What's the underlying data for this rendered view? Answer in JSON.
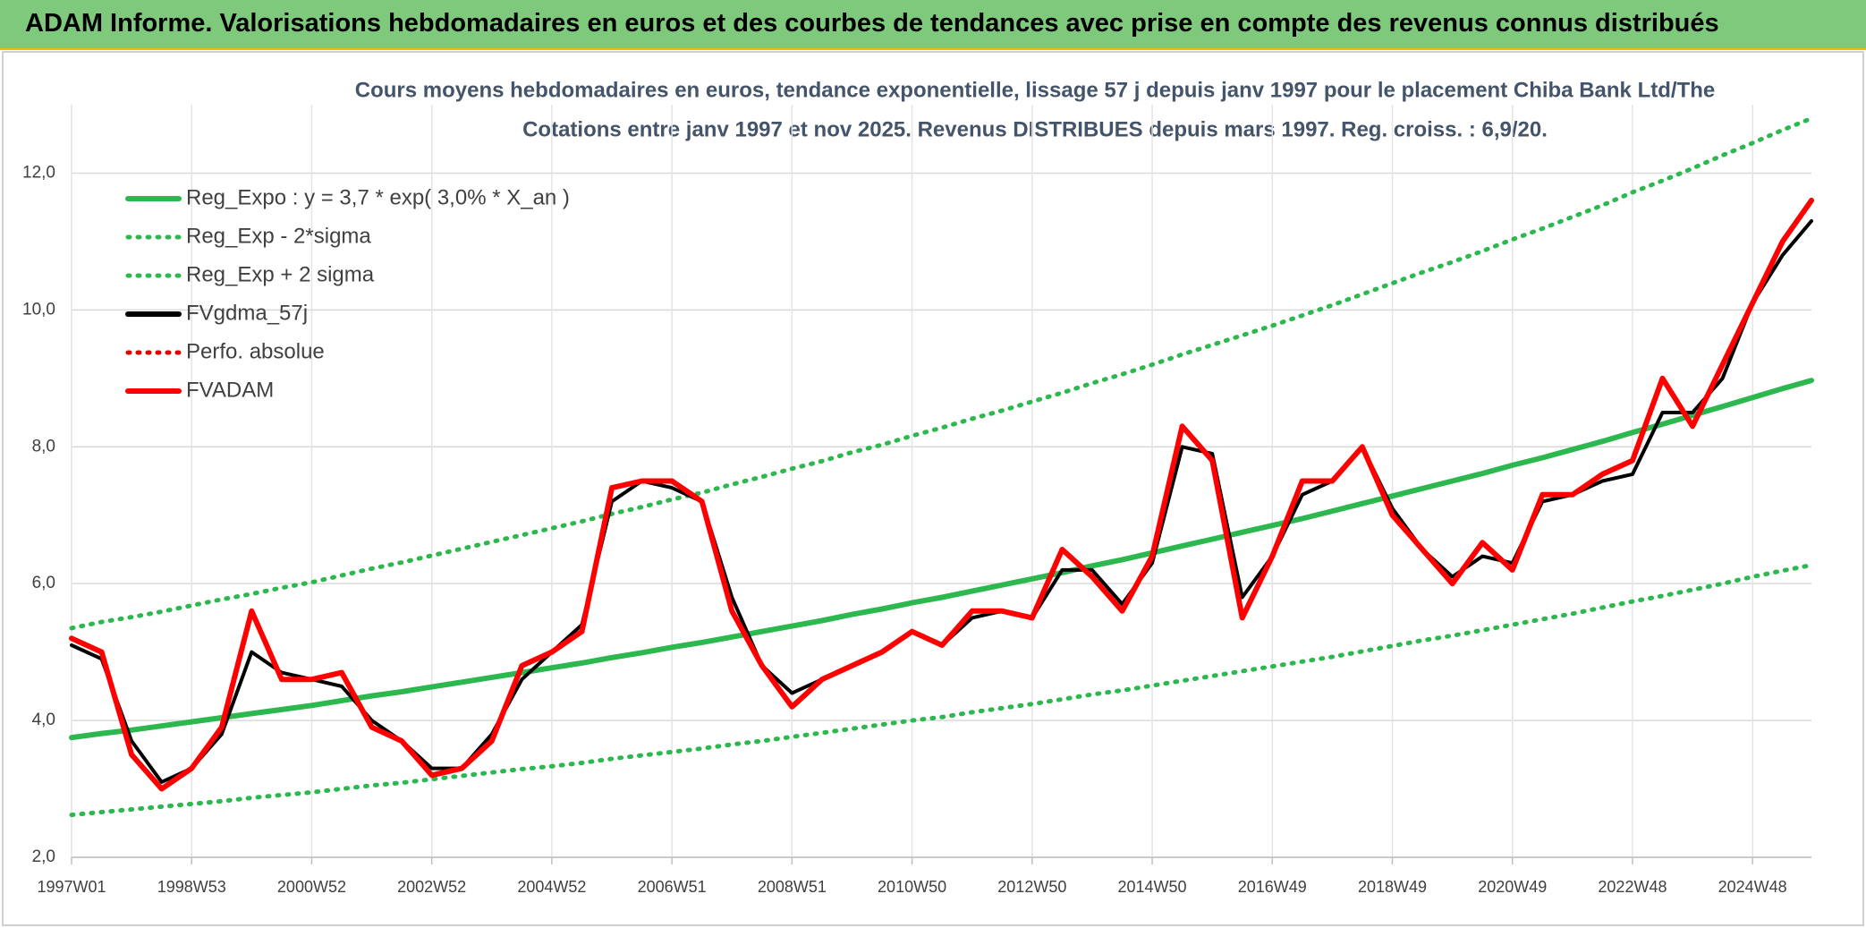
{
  "header": {
    "title": "ADAM Informe. Valorisations hebdomadaires en euros et des courbes de tendances avec prise en compte des revenus connus distribués"
  },
  "chart_data": {
    "type": "line",
    "title": "Cours moyens hebdomadaires en euros, tendance exponentielle, lissage 57 j depuis janv 1997 pour le placement Chiba Bank Ltd/The",
    "subtitle": "Cotations entre janv 1997 et nov 2025. Revenus DISTRIBUES depuis mars 1997. Reg. croiss. : 6,9/20.",
    "x": [
      0,
      26,
      52,
      78,
      104,
      130,
      156,
      182,
      208,
      234,
      260,
      286,
      312,
      338,
      364,
      390,
      416,
      442,
      468,
      494,
      520,
      546,
      572,
      598,
      624,
      650,
      676,
      702,
      728,
      754,
      780,
      806,
      832,
      858,
      884,
      910,
      936,
      962,
      988,
      1014,
      1040,
      1066,
      1092,
      1118,
      1144,
      1170,
      1196,
      1222,
      1248,
      1274,
      1300,
      1326,
      1352,
      1378,
      1404,
      1430,
      1456,
      1482,
      1507
    ],
    "xlim": [
      0,
      1507
    ],
    "xticks": [
      {
        "value": 0,
        "label": "1997W01"
      },
      {
        "value": 104,
        "label": "1998W53"
      },
      {
        "value": 208,
        "label": "2000W52"
      },
      {
        "value": 312,
        "label": "2002W52"
      },
      {
        "value": 416,
        "label": "2004W52"
      },
      {
        "value": 520,
        "label": "2006W51"
      },
      {
        "value": 624,
        "label": "2008W51"
      },
      {
        "value": 728,
        "label": "2010W50"
      },
      {
        "value": 832,
        "label": "2012W50"
      },
      {
        "value": 936,
        "label": "2014W50"
      },
      {
        "value": 1040,
        "label": "2016W49"
      },
      {
        "value": 1144,
        "label": "2018W49"
      },
      {
        "value": 1248,
        "label": "2020W49"
      },
      {
        "value": 1352,
        "label": "2022W48"
      },
      {
        "value": 1456,
        "label": "2024W48"
      }
    ],
    "ylim": [
      2,
      13
    ],
    "yticks": [
      {
        "value": 2,
        "label": "2,0"
      },
      {
        "value": 4,
        "label": "4,0"
      },
      {
        "value": 6,
        "label": "6,0"
      },
      {
        "value": 8,
        "label": "8,0"
      },
      {
        "value": 10,
        "label": "10,0"
      },
      {
        "value": 12,
        "label": "12,0"
      }
    ],
    "grid": true,
    "legend": "upper left",
    "series": [
      {
        "name": "Reg_Expo : y = 3,7 * exp( 3,0% *  X_an )",
        "color": "#2db84f",
        "dash": "solid",
        "values": [
          3.75,
          3.81,
          3.86,
          3.92,
          3.98,
          4.04,
          4.1,
          4.16,
          4.22,
          4.29,
          4.36,
          4.42,
          4.49,
          4.56,
          4.63,
          4.7,
          4.77,
          4.84,
          4.92,
          4.99,
          5.07,
          5.14,
          5.22,
          5.3,
          5.38,
          5.46,
          5.55,
          5.63,
          5.72,
          5.8,
          5.89,
          5.98,
          6.07,
          6.16,
          6.26,
          6.35,
          6.45,
          6.55,
          6.65,
          6.75,
          6.85,
          6.95,
          7.06,
          7.17,
          7.28,
          7.39,
          7.5,
          7.61,
          7.73,
          7.84,
          7.96,
          8.08,
          8.21,
          8.33,
          8.46,
          8.59,
          8.72,
          8.85,
          8.97
        ]
      },
      {
        "name": "Reg_Exp - 2*sigma",
        "color": "#2db84f",
        "dash": "dotted",
        "values": [
          2.62,
          2.66,
          2.7,
          2.74,
          2.78,
          2.82,
          2.87,
          2.91,
          2.95,
          3.0,
          3.05,
          3.09,
          3.14,
          3.19,
          3.24,
          3.29,
          3.33,
          3.38,
          3.44,
          3.49,
          3.54,
          3.59,
          3.65,
          3.7,
          3.76,
          3.82,
          3.88,
          3.94,
          4.0,
          4.05,
          4.12,
          4.18,
          4.24,
          4.31,
          4.38,
          4.44,
          4.51,
          4.58,
          4.65,
          4.72,
          4.79,
          4.86,
          4.93,
          5.01,
          5.09,
          5.17,
          5.24,
          5.32,
          5.4,
          5.48,
          5.56,
          5.65,
          5.74,
          5.82,
          5.91,
          6.0,
          6.1,
          6.19,
          6.27
        ]
      },
      {
        "name": "Reg_Exp + 2 sigma",
        "color": "#2db84f",
        "dash": "dotted",
        "values": [
          5.35,
          5.44,
          5.51,
          5.59,
          5.68,
          5.77,
          5.85,
          5.94,
          6.02,
          6.12,
          6.22,
          6.31,
          6.41,
          6.51,
          6.61,
          6.71,
          6.81,
          6.91,
          7.02,
          7.12,
          7.23,
          7.33,
          7.45,
          7.56,
          7.68,
          7.79,
          7.92,
          8.03,
          8.16,
          8.28,
          8.41,
          8.53,
          8.66,
          8.79,
          8.93,
          9.06,
          9.2,
          9.35,
          9.49,
          9.63,
          9.77,
          9.92,
          10.07,
          10.23,
          10.39,
          10.55,
          10.7,
          10.86,
          11.03,
          11.19,
          11.36,
          11.53,
          11.72,
          11.89,
          12.07,
          12.26,
          12.44,
          12.63,
          12.8
        ]
      },
      {
        "name": "FVgdma_57j",
        "color": "#000000",
        "dash": "solid",
        "values": [
          5.1,
          4.9,
          3.7,
          3.1,
          3.3,
          3.8,
          5.0,
          4.7,
          4.6,
          4.5,
          4.0,
          3.7,
          3.3,
          3.3,
          3.8,
          4.6,
          5.0,
          5.4,
          7.2,
          7.5,
          7.4,
          7.2,
          5.8,
          4.8,
          4.4,
          4.6,
          4.8,
          5.0,
          5.3,
          5.1,
          5.5,
          5.6,
          5.5,
          6.2,
          6.2,
          5.7,
          6.3,
          8.0,
          7.9,
          5.8,
          6.4,
          7.3,
          7.5,
          8.0,
          7.1,
          6.5,
          6.1,
          6.4,
          6.3,
          7.2,
          7.3,
          7.5,
          7.6,
          8.5,
          8.5,
          9.0,
          10.1,
          10.8,
          11.3
        ]
      },
      {
        "name": "Perfo. absolue",
        "color": "#e00000",
        "dash": "dotted",
        "values": [
          null,
          null,
          null,
          null,
          null,
          null,
          null,
          null,
          null,
          null,
          null,
          null,
          null,
          null,
          null,
          null,
          null,
          null,
          null,
          null,
          null,
          null,
          null,
          null,
          null,
          null,
          null,
          null,
          null,
          null,
          null,
          null,
          null,
          null,
          null,
          null,
          null,
          null,
          null,
          null,
          null,
          null,
          null,
          null,
          null,
          null,
          null,
          null,
          null,
          null,
          null,
          null,
          null,
          null,
          null,
          null,
          null,
          null,
          null
        ]
      },
      {
        "name": "FVADAM",
        "color": "#ff0000",
        "dash": "solid",
        "values": [
          5.2,
          5.0,
          3.5,
          3.0,
          3.3,
          3.9,
          5.6,
          4.6,
          4.6,
          4.7,
          3.9,
          3.7,
          3.2,
          3.3,
          3.7,
          4.8,
          5.0,
          5.3,
          7.4,
          7.5,
          7.5,
          7.2,
          5.6,
          4.8,
          4.2,
          4.6,
          4.8,
          5.0,
          5.3,
          5.1,
          5.6,
          5.6,
          5.5,
          6.5,
          6.1,
          5.6,
          6.4,
          8.3,
          7.8,
          5.5,
          6.4,
          7.5,
          7.5,
          8.0,
          7.0,
          6.5,
          6.0,
          6.6,
          6.2,
          7.3,
          7.3,
          7.6,
          7.8,
          9.0,
          8.3,
          9.2,
          10.1,
          11.0,
          11.6
        ]
      }
    ]
  }
}
